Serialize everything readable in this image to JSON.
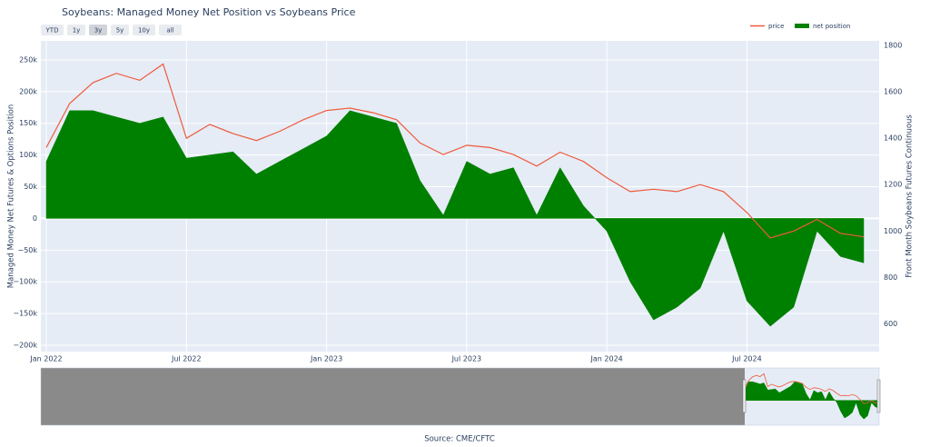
{
  "chart_data": {
    "type": "area-line",
    "title": "Soybeans: Managed Money Net Position vs Soybeans Price",
    "ylabel": "Managed Money Net Futures & Options Position",
    "y2label": "Front Month Soybeans Futures Continuous",
    "source": "Source: CME/CFTC",
    "range_buttons": [
      "YTD",
      "1y",
      "3y",
      "5y",
      "10y",
      "all"
    ],
    "active_button": "3y",
    "legend": "top-right",
    "grid": true,
    "x": [
      "2022-01",
      "2022-02",
      "2022-03",
      "2022-04",
      "2022-05",
      "2022-06",
      "2022-07",
      "2022-08",
      "2022-09",
      "2022-10",
      "2022-11",
      "2022-12",
      "2023-01",
      "2023-02",
      "2023-03",
      "2023-04",
      "2023-05",
      "2023-06",
      "2023-07",
      "2023-08",
      "2023-09",
      "2023-10",
      "2023-11",
      "2023-12",
      "2024-01",
      "2024-02",
      "2024-03",
      "2024-04",
      "2024-05",
      "2024-06",
      "2024-07",
      "2024-08",
      "2024-09",
      "2024-10",
      "2024-11",
      "2024-12"
    ],
    "xlim": [
      "2022-01",
      "2024-12"
    ],
    "xticks": [
      {
        "value": "2022-01",
        "label": "Jan 2022"
      },
      {
        "value": "2022-07",
        "label": "Jul 2022"
      },
      {
        "value": "2023-01",
        "label": "Jan 2023"
      },
      {
        "value": "2023-07",
        "label": "Jul 2023"
      },
      {
        "value": "2024-01",
        "label": "Jan 2024"
      },
      {
        "value": "2024-07",
        "label": "Jul 2024"
      }
    ],
    "ylim": [
      -210000,
      280000
    ],
    "yticks": [
      {
        "value": -200000,
        "label": "−200k"
      },
      {
        "value": -150000,
        "label": "−150k"
      },
      {
        "value": -100000,
        "label": "−100k"
      },
      {
        "value": -50000,
        "label": "−50k"
      },
      0,
      {
        "value": 50000,
        "label": "50k"
      },
      {
        "value": 100000,
        "label": "100k"
      },
      {
        "value": 150000,
        "label": "150k"
      },
      {
        "value": 200000,
        "label": "200k"
      },
      {
        "value": 250000,
        "label": "250k"
      }
    ],
    "y2lim": [
      480,
      1820
    ],
    "y2ticks": [
      600,
      800,
      1000,
      1200,
      1400,
      1600,
      1800
    ],
    "series": [
      {
        "name": "net position",
        "kind": "area",
        "color": "#008000",
        "values": [
          90000,
          170000,
          170000,
          160000,
          150000,
          160000,
          95000,
          100000,
          105000,
          70000,
          90000,
          110000,
          130000,
          170000,
          160000,
          150000,
          60000,
          5000,
          90000,
          70000,
          80000,
          5000,
          80000,
          20000,
          -20000,
          -100000,
          -160000,
          -140000,
          -110000,
          -20000,
          -130000,
          -170000,
          -140000,
          -20000,
          -60000,
          -70000
        ]
      },
      {
        "name": "price",
        "kind": "line",
        "color": "#ef5a3c",
        "axis": "y2",
        "values": [
          1360,
          1550,
          1640,
          1680,
          1650,
          1720,
          1400,
          1460,
          1420,
          1390,
          1430,
          1480,
          1520,
          1530,
          1510,
          1480,
          1380,
          1330,
          1370,
          1360,
          1330,
          1280,
          1340,
          1300,
          1230,
          1170,
          1180,
          1170,
          1200,
          1170,
          1080,
          970,
          1000,
          1050,
          990,
          975
        ]
      }
    ]
  }
}
